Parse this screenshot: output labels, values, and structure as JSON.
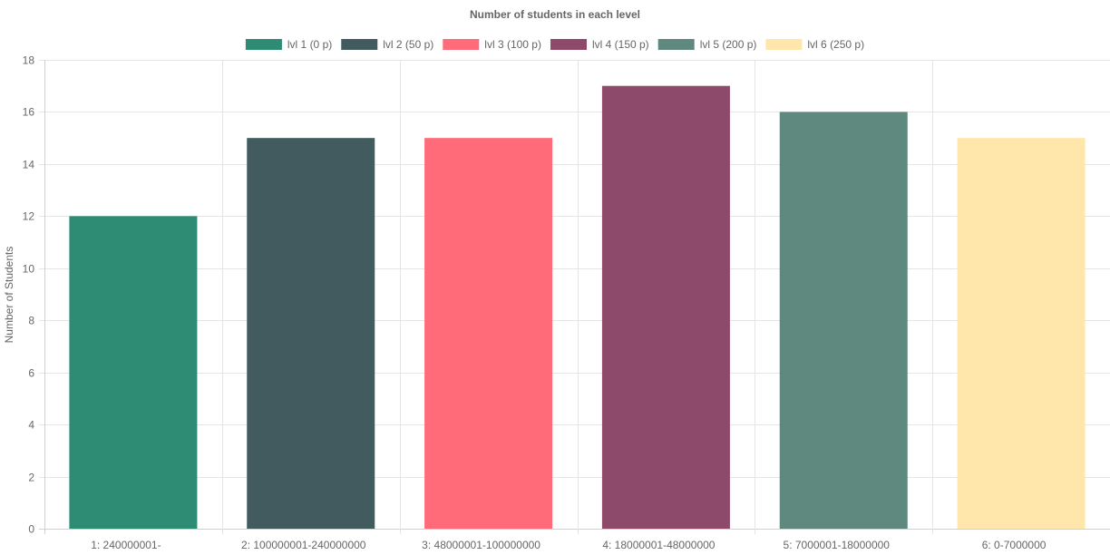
{
  "chart_data": {
    "type": "bar",
    "title": "Number of students in each level",
    "xlabel": "",
    "ylabel": "Number of Students",
    "ylim": [
      0,
      18
    ],
    "ytick_step": 2,
    "grid": true,
    "legend_position": "top",
    "categories": [
      "1: 240000001-",
      "2: 100000001-240000000",
      "3: 48000001-100000000",
      "4: 18000001-48000000",
      "5: 7000001-18000000",
      "6: 0-7000000"
    ],
    "series": [
      {
        "name": "lvl 1 (0 p)",
        "color": "#2e8b74",
        "values": [
          12,
          null,
          null,
          null,
          null,
          null
        ]
      },
      {
        "name": "lvl 2 (50 p)",
        "color": "#425b5f",
        "values": [
          null,
          15,
          null,
          null,
          null,
          null
        ]
      },
      {
        "name": "lvl 3 (100 p)",
        "color": "#ff6b79",
        "values": [
          null,
          null,
          15,
          null,
          null,
          null
        ]
      },
      {
        "name": "lvl 4 (150 p)",
        "color": "#8d4a6b",
        "values": [
          null,
          null,
          null,
          17,
          null,
          null
        ]
      },
      {
        "name": "lvl 5 (200 p)",
        "color": "#5f887e",
        "values": [
          null,
          null,
          null,
          null,
          16,
          null
        ]
      },
      {
        "name": "lvl 6 (250 p)",
        "color": "#ffe6aa",
        "values": [
          null,
          null,
          null,
          null,
          null,
          15
        ]
      }
    ]
  }
}
